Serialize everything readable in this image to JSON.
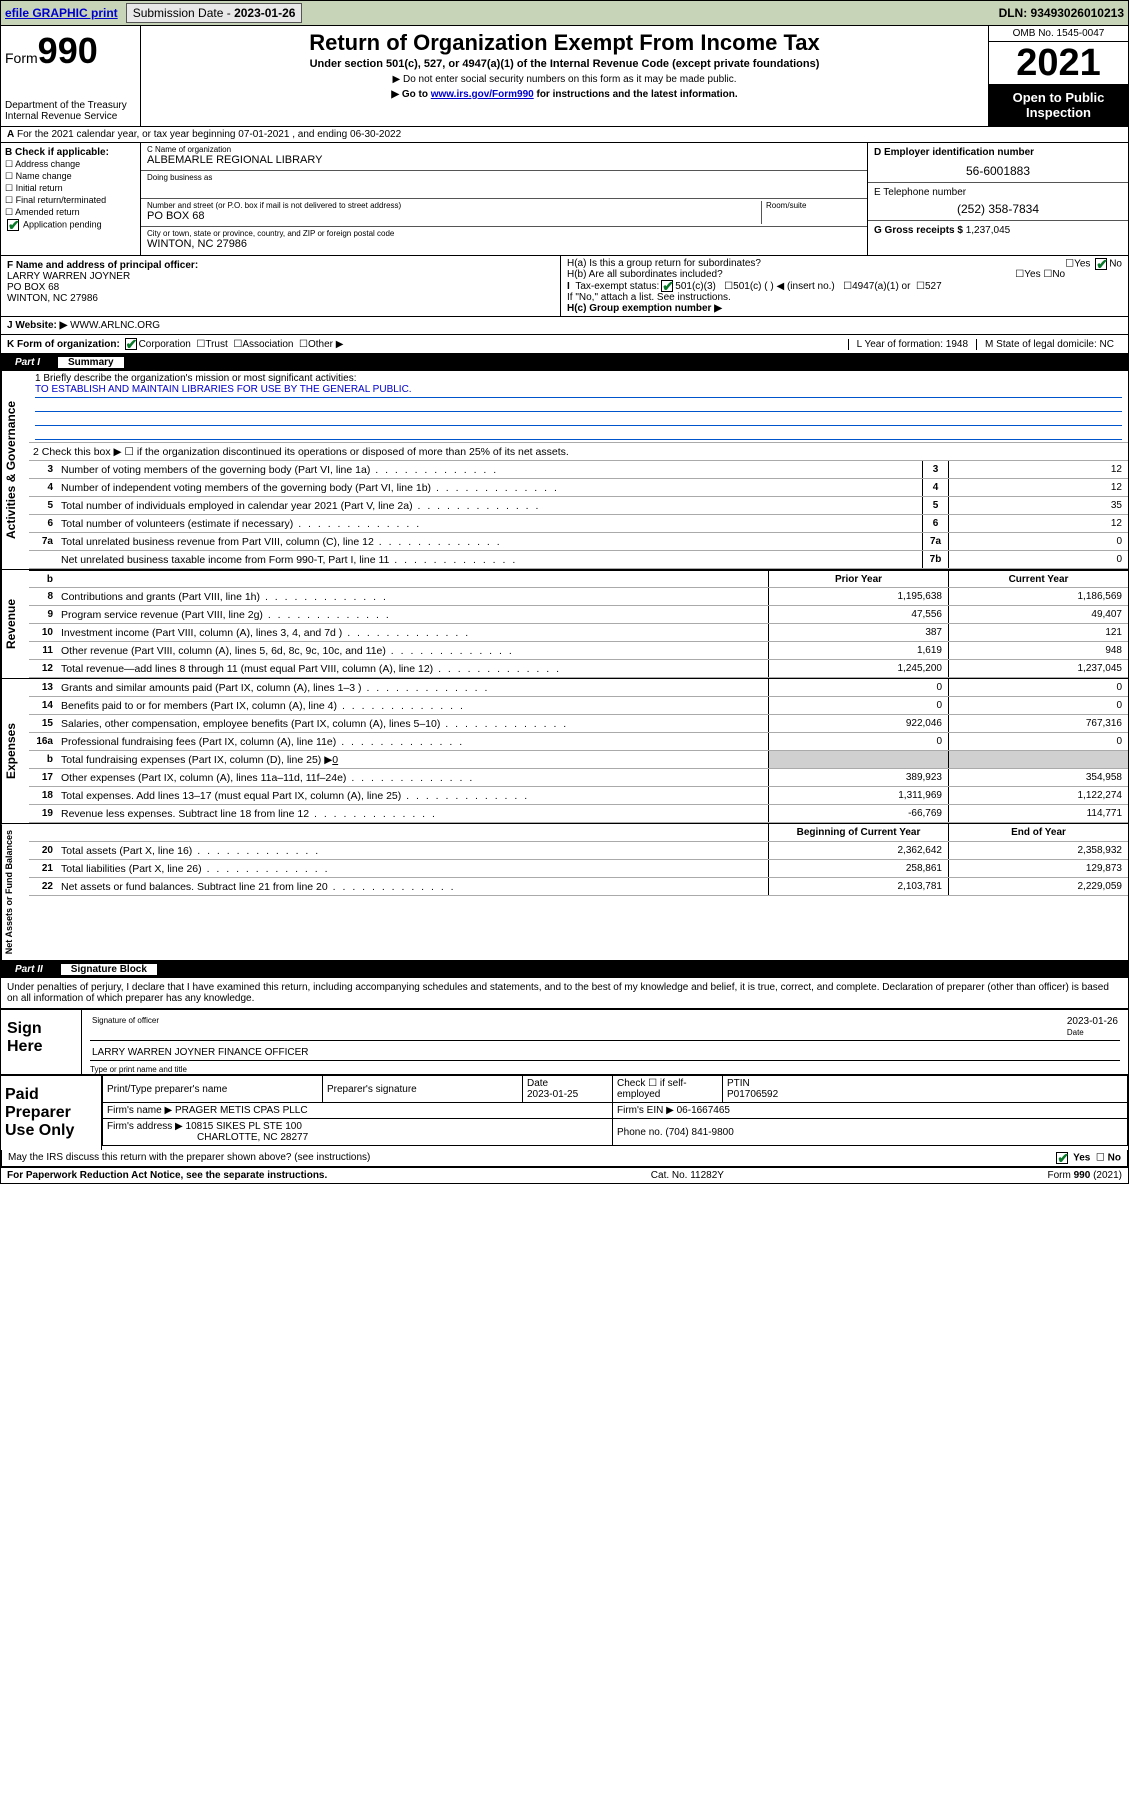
{
  "topbar": {
    "efile": "efile GRAPHIC print",
    "subdate_label": "Submission Date - ",
    "subdate": "2023-01-26",
    "dln": "DLN: 93493026010213"
  },
  "header": {
    "form_prefix": "Form",
    "form_num": "990",
    "dept": "Department of the Treasury\nInternal Revenue Service",
    "title": "Return of Organization Exempt From Income Tax",
    "subtitle": "Under section 501(c), 527, or 4947(a)(1) of the Internal Revenue Code (except private foundations)",
    "note1": "▶ Do not enter social security numbers on this form as it may be made public.",
    "note2": "▶ Go to ",
    "link": "www.irs.gov/Form990",
    "note2b": " for instructions and the latest information.",
    "omb": "OMB No. 1545-0047",
    "year": "2021",
    "open": "Open to Public Inspection"
  },
  "line_a": "For the 2021 calendar year, or tax year beginning 07-01-2021   , and ending 06-30-2022",
  "col_b": {
    "hdr": "B Check if applicable:",
    "items": [
      "Address change",
      "Name change",
      "Initial return",
      "Final return/terminated",
      "Amended return"
    ],
    "app_pending": "Application pending"
  },
  "col_c": {
    "name_lbl": "C Name of organization",
    "name": "ALBEMARLE REGIONAL LIBRARY",
    "dba_lbl": "Doing business as",
    "dba": "",
    "addr_lbl": "Number and street (or P.O. box if mail is not delivered to street address)",
    "room_lbl": "Room/suite",
    "addr": "PO BOX 68",
    "city_lbl": "City or town, state or province, country, and ZIP or foreign postal code",
    "city": "WINTON, NC  27986"
  },
  "col_d": {
    "ein_lbl": "D Employer identification number",
    "ein": "56-6001883",
    "tel_lbl": "E Telephone number",
    "tel": "(252) 358-7834",
    "gross_lbl": "G Gross receipts $",
    "gross": "1,237,045"
  },
  "row_f": {
    "f_lbl": "F  Name and address of principal officer:",
    "f_name": "LARRY WARREN JOYNER",
    "f_addr": "PO BOX 68\nWINTON, NC  27986",
    "ha": "H(a)  Is this a group return for subordinates?",
    "hb": "H(b)  Are all subordinates included?",
    "hb2": "If \"No,\" attach a list. See instructions.",
    "hc": "H(c)  Group exemption number ▶",
    "yes": "Yes",
    "no": "No"
  },
  "row_i": {
    "lbl": "I   Tax-exempt status:",
    "c1": "501(c)(3)",
    "c2": "501(c) (  ) ◀ (insert no.)",
    "c3": "4947(a)(1) or",
    "c4": "527"
  },
  "row_j": {
    "lbl": "J   Website: ▶",
    "val": "WWW.ARLNC.ORG"
  },
  "row_k": {
    "lbl": "K Form of organization:",
    "c1": "Corporation",
    "c2": "Trust",
    "c3": "Association",
    "c4": "Other ▶",
    "l": "L Year of formation: 1948",
    "m": "M State of legal domicile: NC"
  },
  "part1": {
    "num": "Part I",
    "title": "Summary"
  },
  "mission_lbl": "1   Briefly describe the organization's mission or most significant activities:",
  "mission": "TO ESTABLISH AND MAINTAIN LIBRARIES FOR USE BY THE GENERAL PUBLIC.",
  "line2": "2   Check this box ▶ ☐  if the organization discontinued its operations or disposed of more than 25% of its net assets.",
  "rows_gov": [
    {
      "n": "3",
      "t": "Number of voting members of the governing body (Part VI, line 1a)",
      "b": "3",
      "v": "12"
    },
    {
      "n": "4",
      "t": "Number of independent voting members of the governing body (Part VI, line 1b)",
      "b": "4",
      "v": "12"
    },
    {
      "n": "5",
      "t": "Total number of individuals employed in calendar year 2021 (Part V, line 2a)",
      "b": "5",
      "v": "35"
    },
    {
      "n": "6",
      "t": "Total number of volunteers (estimate if necessary)",
      "b": "6",
      "v": "12"
    },
    {
      "n": "7a",
      "t": "Total unrelated business revenue from Part VIII, column (C), line 12",
      "b": "7a",
      "v": "0"
    },
    {
      "n": "",
      "t": "Net unrelated business taxable income from Form 990-T, Part I, line 11",
      "b": "7b",
      "v": "0"
    }
  ],
  "hdr_b": "b",
  "hdr_py": "Prior Year",
  "hdr_cy": "Current Year",
  "rows_rev": [
    {
      "n": "8",
      "t": "Contributions and grants (Part VIII, line 1h)",
      "p": "1,195,638",
      "c": "1,186,569"
    },
    {
      "n": "9",
      "t": "Program service revenue (Part VIII, line 2g)",
      "p": "47,556",
      "c": "49,407"
    },
    {
      "n": "10",
      "t": "Investment income (Part VIII, column (A), lines 3, 4, and 7d )",
      "p": "387",
      "c": "121"
    },
    {
      "n": "11",
      "t": "Other revenue (Part VIII, column (A), lines 5, 6d, 8c, 9c, 10c, and 11e)",
      "p": "1,619",
      "c": "948"
    },
    {
      "n": "12",
      "t": "Total revenue—add lines 8 through 11 (must equal Part VIII, column (A), line 12)",
      "p": "1,245,200",
      "c": "1,237,045"
    }
  ],
  "rows_exp": [
    {
      "n": "13",
      "t": "Grants and similar amounts paid (Part IX, column (A), lines 1–3 )",
      "p": "0",
      "c": "0"
    },
    {
      "n": "14",
      "t": "Benefits paid to or for members (Part IX, column (A), line 4)",
      "p": "0",
      "c": "0"
    },
    {
      "n": "15",
      "t": "Salaries, other compensation, employee benefits (Part IX, column (A), lines 5–10)",
      "p": "922,046",
      "c": "767,316"
    },
    {
      "n": "16a",
      "t": "Professional fundraising fees (Part IX, column (A), line 11e)",
      "p": "0",
      "c": "0"
    }
  ],
  "row_16b": {
    "n": "b",
    "t": "Total fundraising expenses (Part IX, column (D), line 25) ▶",
    "u": "0"
  },
  "rows_exp2": [
    {
      "n": "17",
      "t": "Other expenses (Part IX, column (A), lines 11a–11d, 11f–24e)",
      "p": "389,923",
      "c": "354,958"
    },
    {
      "n": "18",
      "t": "Total expenses. Add lines 13–17 (must equal Part IX, column (A), line 25)",
      "p": "1,311,969",
      "c": "1,122,274"
    },
    {
      "n": "19",
      "t": "Revenue less expenses. Subtract line 18 from line 12",
      "p": "-66,769",
      "c": "114,771"
    }
  ],
  "hdr_boy": "Beginning of Current Year",
  "hdr_eoy": "End of Year",
  "rows_net": [
    {
      "n": "20",
      "t": "Total assets (Part X, line 16)",
      "p": "2,362,642",
      "c": "2,358,932"
    },
    {
      "n": "21",
      "t": "Total liabilities (Part X, line 26)",
      "p": "258,861",
      "c": "129,873"
    },
    {
      "n": "22",
      "t": "Net assets or fund balances. Subtract line 21 from line 20",
      "p": "2,103,781",
      "c": "2,229,059"
    }
  ],
  "vlabels": {
    "gov": "Activities & Governance",
    "rev": "Revenue",
    "exp": "Expenses",
    "net": "Net Assets or Fund Balances"
  },
  "part2": {
    "num": "Part II",
    "title": "Signature Block"
  },
  "decl": "Under penalties of perjury, I declare that I have examined this return, including accompanying schedules and statements, and to the best of my knowledge and belief, it is true, correct, and complete. Declaration of preparer (other than officer) is based on all information of which preparer has any knowledge.",
  "sign": {
    "here": "Sign Here",
    "sig_lbl": "Signature of officer",
    "date_lbl": "Date",
    "date": "2023-01-26",
    "name": "LARRY WARREN JOYNER  FINANCE OFFICER",
    "name_lbl": "Type or print name and title"
  },
  "paid": {
    "lbl": "Paid Preparer Use Only",
    "h1": "Print/Type preparer's name",
    "h2": "Preparer's signature",
    "h3": "Date",
    "h3v": "2023-01-25",
    "h4": "Check ☐ if self-employed",
    "h5": "PTIN",
    "h5v": "P01706592",
    "firm_lbl": "Firm's name    ▶",
    "firm": "PRAGER METIS CPAS PLLC",
    "ein_lbl": "Firm's EIN ▶",
    "ein": "06-1667465",
    "addr_lbl": "Firm's address ▶",
    "addr": "10815 SIKES PL STE 100",
    "addr2": "CHARLOTTE, NC  28277",
    "phone_lbl": "Phone no.",
    "phone": "(704) 841-9800"
  },
  "footer": {
    "q": "May the IRS discuss this return with the preparer shown above? (see instructions)",
    "yes": "Yes",
    "no": "No",
    "pra": "For Paperwork Reduction Act Notice, see the separate instructions.",
    "cat": "Cat. No. 11282Y",
    "form": "Form 990 (2021)"
  }
}
